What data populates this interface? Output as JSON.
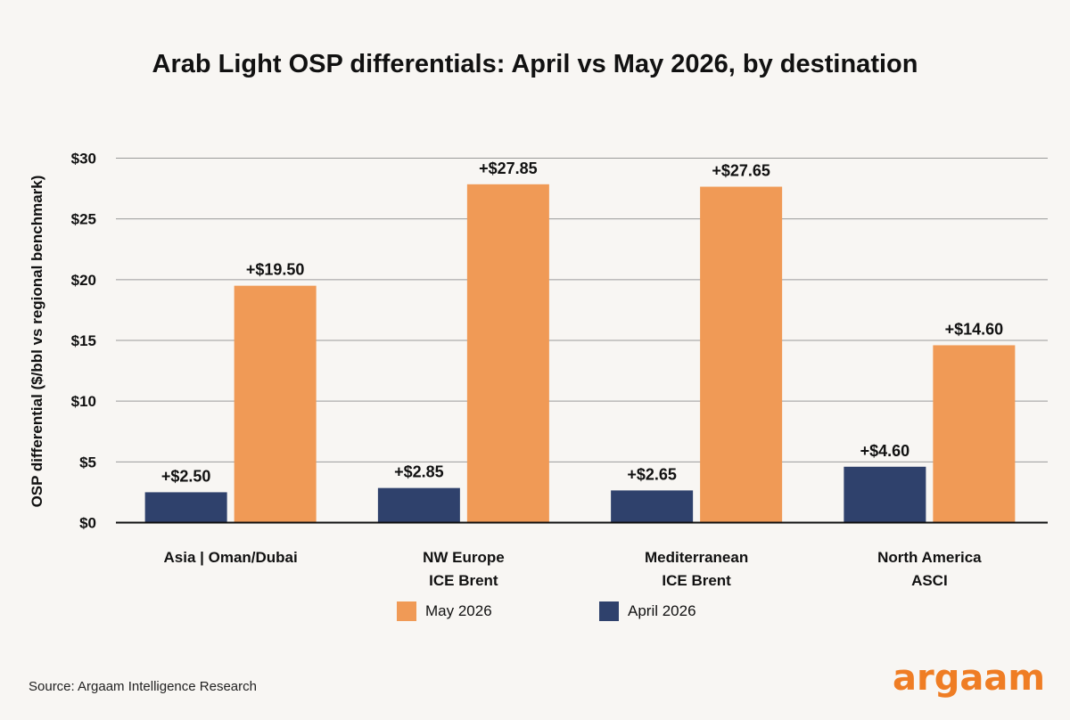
{
  "chart_data": {
    "type": "bar",
    "title": "Arab Light OSP differentials: April vs May 2026, by destination",
    "ylabel": "OSP differential ($/bbl vs regional benchmark)",
    "xlabel": "",
    "ylim": [
      0,
      30
    ],
    "yticks": [
      {
        "value": 0,
        "label": "$0"
      },
      {
        "value": 5,
        "label": "$5"
      },
      {
        "value": 10,
        "label": "$10"
      },
      {
        "value": 15,
        "label": "$15"
      },
      {
        "value": 20,
        "label": "$20"
      },
      {
        "value": 25,
        "label": "$25"
      },
      {
        "value": 30,
        "label": "$30"
      }
    ],
    "grid": true,
    "legend_position": "bottom",
    "categories": [
      [
        "Asia | Oman/Dubai"
      ],
      [
        "NW Europe",
        "ICE Brent"
      ],
      [
        "Mediterranean",
        "ICE Brent"
      ],
      [
        "North America",
        "ASCI"
      ]
    ],
    "series": [
      {
        "name": "April 2026",
        "color": "#2f416c",
        "values": [
          2.5,
          2.85,
          2.65,
          4.6
        ],
        "labels": [
          "+$2.50",
          "+$2.85",
          "+$2.65",
          "+$4.60"
        ]
      },
      {
        "name": "May 2026",
        "color": "#f09a56",
        "values": [
          19.5,
          27.85,
          27.65,
          14.6
        ],
        "labels": [
          "+$19.50",
          "+$27.85",
          "+$27.65",
          "+$14.60"
        ]
      }
    ],
    "legend_order": [
      "May 2026",
      "April 2026"
    ]
  },
  "footer": {
    "source": "Source: Argaam Intelligence Research",
    "logo_text": "argaam"
  }
}
